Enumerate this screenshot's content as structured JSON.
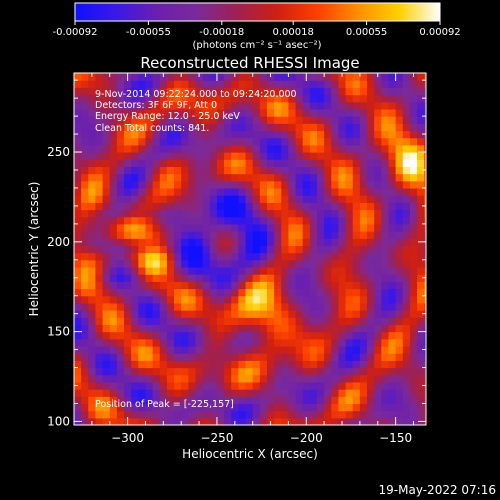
{
  "colorbar": {
    "ticks": [
      "-0.00092",
      "-0.00055",
      "-0.00018",
      "0.00018",
      "0.00055",
      "0.00092"
    ],
    "tick_values": [
      -0.00092,
      -0.00055,
      -0.00018,
      0.00018,
      0.00055,
      0.00092
    ],
    "unit_label": "(photons cm⁻² s⁻¹ asec⁻²)",
    "stops": [
      "#1010ff",
      "#3a18e8",
      "#6a1fb0",
      "#7b2a9a",
      "#a02050",
      "#d02010",
      "#ff4000",
      "#ff9000",
      "#ffd000",
      "#ffffff"
    ]
  },
  "chart_data": {
    "type": "heatmap",
    "title": "Reconstructed RHESSI Image",
    "xlabel": "Heliocentric X (arcsec)",
    "ylabel": "Heliocentric Y (arcsec)",
    "xlim": [
      -330,
      -133
    ],
    "ylim": [
      98,
      294
    ],
    "x_ticks": [
      -300,
      -250,
      -200,
      -150
    ],
    "x_tick_labels": [
      "−300",
      "−250",
      "−200",
      "−150"
    ],
    "y_ticks": [
      100,
      150,
      200,
      250
    ],
    "y_tick_labels": [
      "100",
      "150",
      "200",
      "250"
    ],
    "peak": [
      -225,
      157
    ],
    "zrange": [
      -0.00092,
      0.00092
    ],
    "annotations": [
      "9-Nov-2014 09:22:24.000 to 09:24:20.000",
      "Detectors: 3F 6F 9F, Att 0",
      "Energy Range: 12.0 - 25.0 keV",
      "Clean    Total counts: 841."
    ],
    "peak_label": "Position of Peak = [-225,157]"
  },
  "timestamp": "19-May-2022 07:16"
}
